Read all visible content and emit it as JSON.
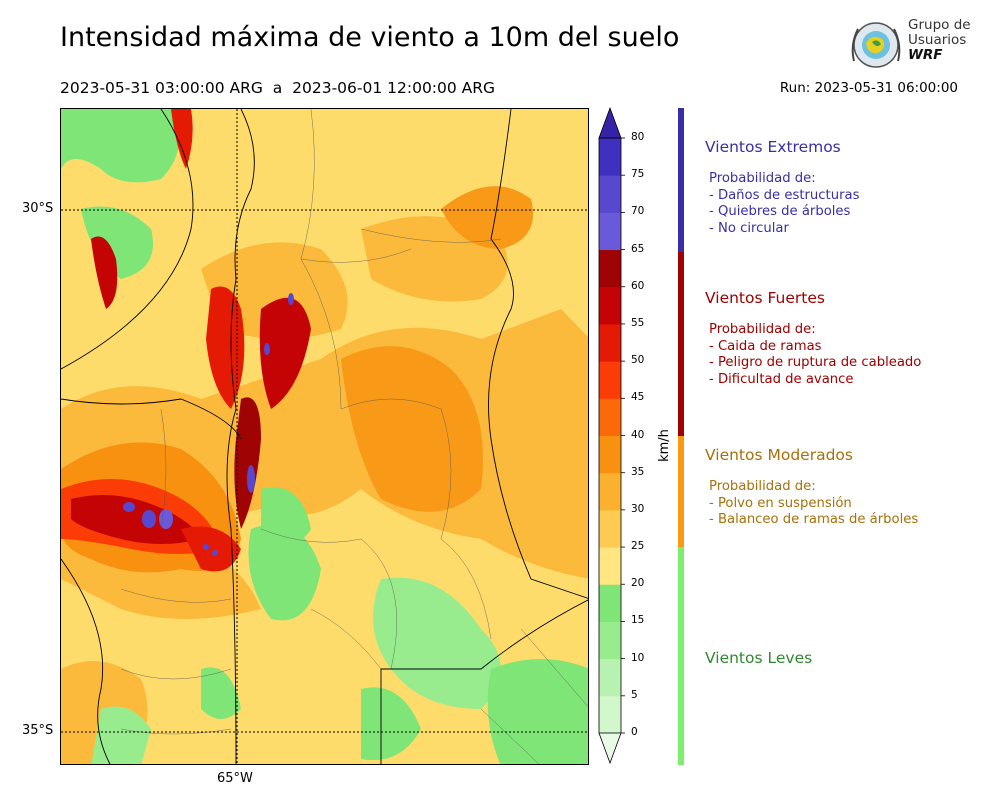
{
  "title": "Intensidad máxima de viento a 10m del suelo",
  "subtitle": "2023-05-31 03:00:00 ARG  a  2023-06-01 12:00:00 ARG",
  "run": "Run: 2023-05-31 06:00:00",
  "logo": {
    "line1": "Grupo de",
    "line2": "Usuarios",
    "line3": "WRF"
  },
  "map": {
    "lat_labels": [
      "30°S",
      "35°S"
    ],
    "lon_labels": [
      "65°W"
    ]
  },
  "colorbar": {
    "unit": "km/h",
    "ticks": [
      "0",
      "5",
      "10",
      "15",
      "20",
      "25",
      "30",
      "35",
      "40",
      "45",
      "50",
      "55",
      "60",
      "65",
      "70",
      "75",
      "80"
    ],
    "colors": [
      "#e8fbe6",
      "#d2f7cd",
      "#b8f2b0",
      "#99ec8e",
      "#7fe576",
      "#ffe680",
      "#fdcb52",
      "#fbb030",
      "#f99110",
      "#fb6a08",
      "#fb3c06",
      "#e41a05",
      "#c40404",
      "#a00303",
      "#6a5ad9",
      "#5848d0",
      "#4030c0",
      "#3522a8"
    ]
  },
  "categories": [
    {
      "title": "Vientos Extremos",
      "color": "#3a2ea8",
      "lines": [
        "Probabilidad de:",
        "- Daños de estructuras",
        "- Quiebres de árboles",
        "- No circular"
      ]
    },
    {
      "title": "Vientos Fuertes",
      "color": "#a00000",
      "lines": [
        "Probabilidad de:",
        "- Caida de ramas",
        "- Peligro de ruptura de cableado",
        "- Dificultad de avance"
      ]
    },
    {
      "title": "Vientos Moderados",
      "color": "#a8700a",
      "lines": [
        "Probabilidad de:",
        "- Polvo en suspensión",
        "- Balanceo de ramas de árboles"
      ]
    },
    {
      "title": "Vientos Leves",
      "color": "#2e8a2e",
      "lines": []
    }
  ],
  "legend_bar_colors": [
    "#3a2ea8",
    "#a00000",
    "#fb9a10",
    "#7cef6e"
  ]
}
